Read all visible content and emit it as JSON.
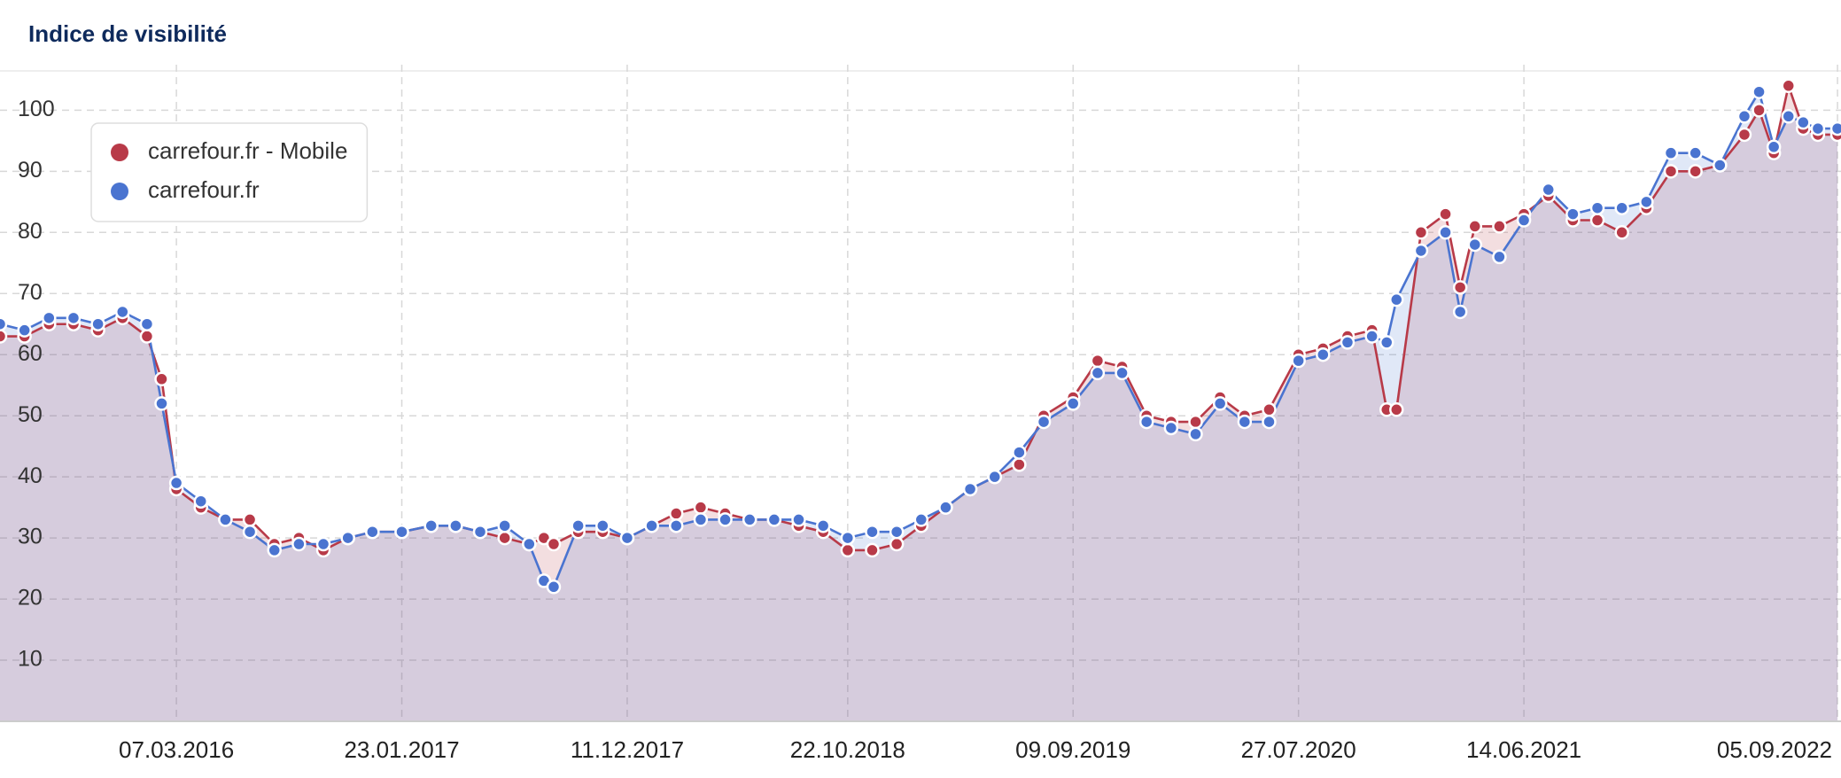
{
  "chart_data": {
    "type": "line",
    "title": "Indice de visibilité",
    "x": [
      "29.06.2015",
      "03.08.2015",
      "07.09.2015",
      "12.10.2015",
      "16.11.2015",
      "21.12.2015",
      "25.01.2016",
      "15.02.2016",
      "07.03.2016",
      "11.04.2016",
      "16.05.2016",
      "20.06.2016",
      "25.07.2016",
      "29.08.2016",
      "03.10.2016",
      "07.11.2016",
      "12.12.2016",
      "23.01.2017",
      "06.03.2017",
      "10.04.2017",
      "15.05.2017",
      "19.06.2017",
      "24.07.2017",
      "14.08.2017",
      "28.08.2017",
      "02.10.2017",
      "06.11.2017",
      "11.12.2017",
      "15.01.2018",
      "19.02.2018",
      "26.03.2018",
      "30.04.2018",
      "04.06.2018",
      "09.07.2018",
      "13.08.2018",
      "17.09.2018",
      "22.10.2018",
      "26.11.2018",
      "31.12.2018",
      "04.02.2019",
      "11.03.2019",
      "15.04.2019",
      "20.05.2019",
      "24.06.2019",
      "29.07.2019",
      "09.09.2019",
      "14.10.2019",
      "18.11.2019",
      "23.12.2019",
      "27.01.2020",
      "02.03.2020",
      "06.04.2020",
      "11.05.2020",
      "15.06.2020",
      "27.07.2020",
      "31.08.2020",
      "05.10.2020",
      "09.11.2020",
      "30.11.2020",
      "14.12.2020",
      "18.01.2021",
      "22.02.2021",
      "15.03.2021",
      "05.04.2021",
      "10.05.2021",
      "14.06.2021",
      "19.07.2021",
      "23.08.2021",
      "27.09.2021",
      "01.11.2021",
      "06.12.2021",
      "10.01.2022",
      "14.02.2022",
      "21.03.2022",
      "25.04.2022",
      "16.05.2022",
      "06.06.2022",
      "27.06.2022",
      "18.07.2022",
      "08.08.2022",
      "05.09.2022"
    ],
    "series": [
      {
        "name": "carrefour.fr - Mobile",
        "color": "#b83a48",
        "values": [
          63,
          63,
          65,
          65,
          64,
          66,
          63,
          56,
          38,
          35,
          33,
          33,
          29,
          30,
          28,
          30,
          31,
          31,
          32,
          32,
          31,
          30,
          29,
          30,
          29,
          31,
          31,
          30,
          32,
          34,
          35,
          34,
          33,
          33,
          32,
          31,
          28,
          28,
          29,
          32,
          35,
          38,
          40,
          42,
          50,
          53,
          59,
          58,
          50,
          49,
          49,
          53,
          50,
          51,
          60,
          61,
          63,
          64,
          51,
          51,
          80,
          83,
          71,
          81,
          81,
          83,
          86,
          82,
          82,
          80,
          84,
          90,
          90,
          91,
          96,
          100,
          93,
          104,
          97,
          96,
          96
        ]
      },
      {
        "name": "carrefour.fr",
        "color": "#4a74d0",
        "values": [
          65,
          64,
          66,
          66,
          65,
          67,
          65,
          52,
          39,
          36,
          33,
          31,
          28,
          29,
          29,
          30,
          31,
          31,
          32,
          32,
          31,
          32,
          29,
          23,
          22,
          32,
          32,
          30,
          32,
          32,
          33,
          33,
          33,
          33,
          33,
          32,
          30,
          31,
          31,
          33,
          35,
          38,
          40,
          44,
          49,
          52,
          57,
          57,
          49,
          48,
          47,
          52,
          49,
          49,
          59,
          60,
          62,
          63,
          62,
          69,
          77,
          80,
          67,
          78,
          76,
          82,
          87,
          83,
          84,
          84,
          85,
          93,
          93,
          91,
          99,
          103,
          94,
          99,
          98,
          97,
          97
        ]
      }
    ],
    "xlim": [
      "29.06.2015",
      "10.09.2022"
    ],
    "xticks": [
      "07.03.2016",
      "23.01.2017",
      "11.12.2017",
      "22.10.2018",
      "09.09.2019",
      "27.07.2020",
      "14.06.2021",
      "05.09.2022"
    ],
    "ylim": [
      0,
      106
    ],
    "yticks": [
      10,
      20,
      30,
      40,
      50,
      60,
      70,
      80,
      90,
      100
    ],
    "grid": true,
    "legend": "upper left"
  }
}
